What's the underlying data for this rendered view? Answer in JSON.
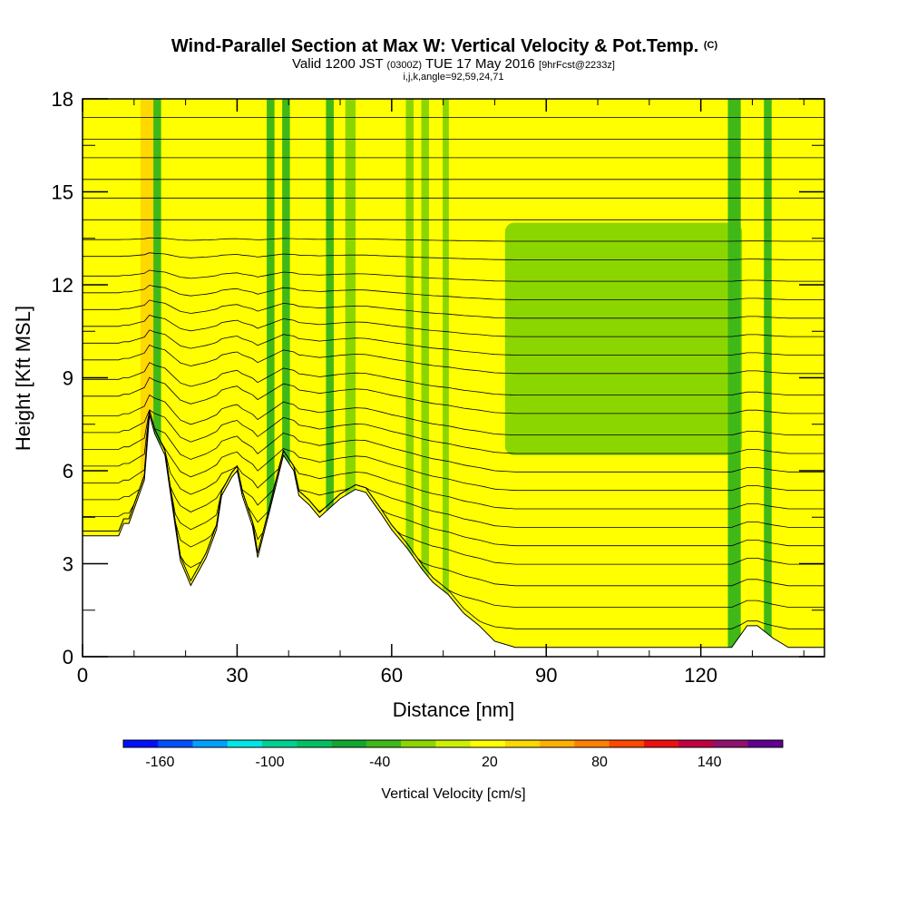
{
  "chart_data": {
    "type": "heatmap",
    "title": "Wind-Parallel Section at Max W: Vertical Velocity & Pot.Temp.",
    "title_mark": "(C)",
    "subtitle": {
      "valid": "Valid 1200 JST",
      "utc": "(0300Z)",
      "date": "TUE 17 May 2016",
      "forecast": "[9hrFcst@2233z]"
    },
    "subtitle2": "i,j,k,angle=92,59,24,71",
    "xlabel": "Distance [nm]",
    "ylabel": "Height [Kft MSL]",
    "xlim": [
      0,
      144
    ],
    "ylim": [
      0,
      18
    ],
    "xticks": [
      0,
      30,
      60,
      90,
      120
    ],
    "yticks": [
      0,
      3,
      6,
      9,
      12,
      15,
      18
    ],
    "colorbar": {
      "label": "Vertical Velocity [cm/s]",
      "tick_labels": [
        "-160",
        "-100",
        "-40",
        "20",
        "80",
        "140"
      ],
      "tick_values": [
        -160,
        -100,
        -40,
        20,
        80,
        140
      ],
      "bins": [
        -180,
        -160,
        -140,
        -120,
        -100,
        -80,
        -60,
        -40,
        -20,
        0,
        20,
        40,
        60,
        80,
        100,
        120,
        140,
        160,
        180
      ],
      "colors": [
        "#0010ff",
        "#0050ff",
        "#00a0ff",
        "#00e6e6",
        "#00d090",
        "#00c060",
        "#10a830",
        "#40b818",
        "#8cd600",
        "#ccf000",
        "#ffff00",
        "#ffd800",
        "#ffb000",
        "#ff8000",
        "#ff4800",
        "#ee1010",
        "#c00040",
        "#901070",
        "#600090"
      ]
    },
    "terrain": {
      "distance_nm": [
        0,
        7,
        8,
        9,
        12,
        13,
        14,
        16,
        18,
        19,
        21,
        24,
        26,
        27,
        29,
        30,
        31,
        33,
        34,
        36,
        39,
        41,
        42,
        44,
        46,
        48,
        50,
        53,
        55,
        58,
        60,
        63,
        66,
        68,
        71,
        74,
        77,
        80,
        84,
        88,
        92,
        98,
        104,
        110,
        116,
        120,
        126,
        129,
        131,
        134,
        137,
        140,
        144
      ],
      "height_kft": [
        3.9,
        3.9,
        4.3,
        4.3,
        5.7,
        7.8,
        7.2,
        6.5,
        4.2,
        3.1,
        2.3,
        3.2,
        4.1,
        5.2,
        5.8,
        6.0,
        5.2,
        4.2,
        3.2,
        4.5,
        6.5,
        6.0,
        5.2,
        4.9,
        4.5,
        4.8,
        5.1,
        5.4,
        5.3,
        4.6,
        4.1,
        3.5,
        2.8,
        2.4,
        2.0,
        1.4,
        1.0,
        0.5,
        0.3,
        0.3,
        0.3,
        0.3,
        0.3,
        0.3,
        0.3,
        0.3,
        0.3,
        1.0,
        1.0,
        0.6,
        0.3,
        0.3,
        0.3
      ]
    },
    "updraft_columns": [
      {
        "distance_nm": 12.5,
        "width_nm": 2.5,
        "w_cm_s": 40
      },
      {
        "distance_nm": 16,
        "width_nm": 1.5,
        "w_cm_s": 35
      },
      {
        "distance_nm": 7,
        "width_nm": 1.5,
        "w_cm_s": 30
      },
      {
        "distance_nm": 21,
        "width_nm": 2,
        "w_cm_s": 30
      }
    ],
    "downdraft_columns": [
      {
        "distance_nm": 14.5,
        "width_nm": 1.5,
        "w_cm_s": -40
      },
      {
        "distance_nm": 36.5,
        "width_nm": 1.5,
        "w_cm_s": -40
      },
      {
        "distance_nm": 39.5,
        "width_nm": 1.5,
        "w_cm_s": -35
      },
      {
        "distance_nm": 48,
        "width_nm": 1.5,
        "w_cm_s": -30
      },
      {
        "distance_nm": 52,
        "width_nm": 2,
        "w_cm_s": -20
      },
      {
        "distance_nm": 63.5,
        "width_nm": 1.5,
        "w_cm_s": -20
      },
      {
        "distance_nm": 66.5,
        "width_nm": 1.5,
        "w_cm_s": -20
      },
      {
        "distance_nm": 70.5,
        "width_nm": 1.2,
        "w_cm_s": -20
      },
      {
        "distance_nm": 126.5,
        "width_nm": 2.5,
        "w_cm_s": -35
      },
      {
        "distance_nm": 133,
        "width_nm": 1.5,
        "w_cm_s": -25
      }
    ],
    "downdraft_region": {
      "distance_nm": [
        82,
        128
      ],
      "height_kft": [
        6.5,
        14
      ],
      "w_cm_s": -10
    },
    "isentrope_heights_kft": [
      0.8,
      1.5,
      2.2,
      2.9,
      3.5,
      4.1,
      4.7,
      5.3,
      5.9,
      6.5,
      7.1,
      7.8,
      8.4,
      9.1,
      9.7,
      10.3,
      10.9,
      11.5,
      12.1,
      12.8,
      13.4,
      14.1,
      14.8,
      15.4,
      16.1,
      16.7,
      17.4
    ]
  }
}
